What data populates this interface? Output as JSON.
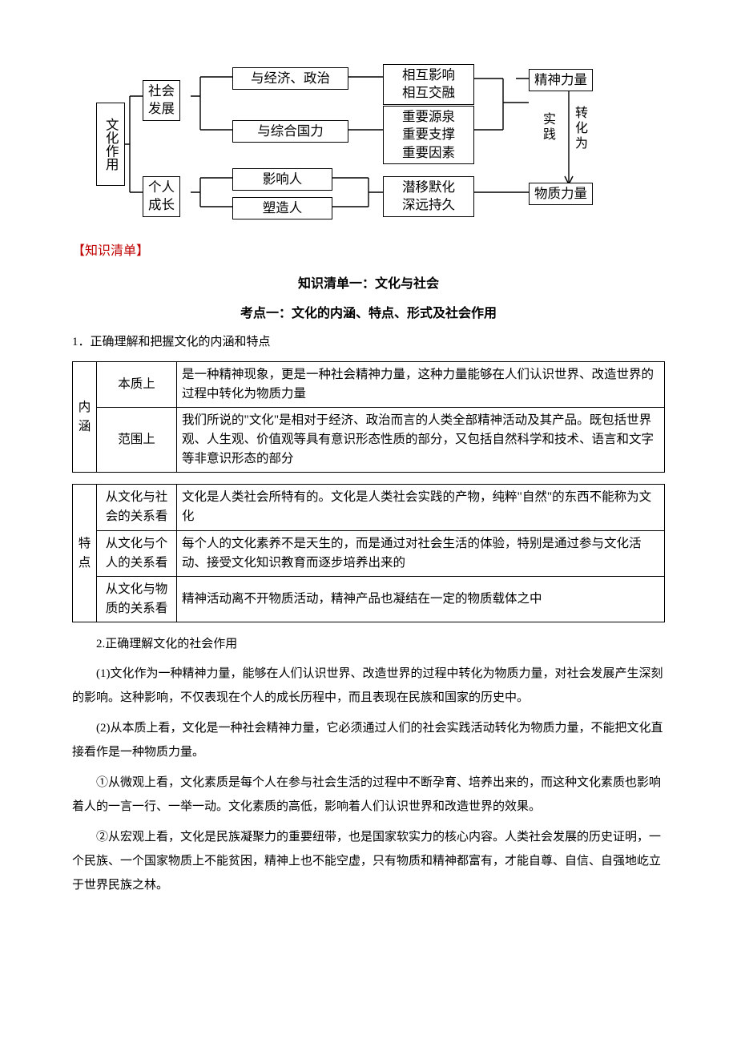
{
  "colors": {
    "header_red": "#c00000",
    "border": "#000000",
    "text": "#000000",
    "bg": "#ffffff"
  },
  "diagram": {
    "root": "文化作用",
    "level1": {
      "a": "社会\n发展",
      "b": "个人\n成长"
    },
    "level2": {
      "a": "与经济、政治",
      "b": "与综合国力",
      "c": "影响人",
      "d": "塑造人"
    },
    "level3": {
      "a": "相互影响\n相互交融",
      "b": "重要源泉\n重要支撑\n重要因素",
      "c": "潜移默化\n深远持久"
    },
    "right": {
      "a": "精神力量",
      "b": "物质力量"
    },
    "conn_label1": "实\n践",
    "conn_label2": "转\n化\n为"
  },
  "knowledge_header": "【知识清单】",
  "list1_title": "知识清单一：文化与社会",
  "kaodian1": "考点一：文化的内涵、特点、形式及社会作用",
  "point1": "1．正确理解和把握文化的内涵和特点",
  "table1": {
    "cat": "内\n涵",
    "rows": [
      {
        "aspect": "本质上",
        "desc": "是一种精神现象，更是一种社会精神力量，这种力量能够在人们认识世界、改造世界的过程中转化为物质力量"
      },
      {
        "aspect": "范围上",
        "desc": "我们所说的\"文化\"是相对于经济、政治而言的人类全部精神活动及其产品。既包括世界观、人生观、价值观等具有意识形态性质的部分，又包括自然科学和技术、语言和文字等非意识形态的部分"
      }
    ]
  },
  "table2": {
    "cat": "特\n点",
    "rows": [
      {
        "aspect": "从文化与社会的关系看",
        "desc": "文化是人类社会所特有的。文化是人类社会实践的产物，纯粹\"自然\"的东西不能称为文化"
      },
      {
        "aspect": "从文化与个人的关系看",
        "desc": "每个人的文化素养不是天生的，而是通过对社会生活的体验，特别是通过参与文化活动、接受文化知识教育而逐步培养出来的"
      },
      {
        "aspect": "从文化与物质的关系看",
        "desc": "精神活动离不开物质活动，精神产品也凝结在一定的物质载体之中"
      }
    ]
  },
  "point2": "2.正确理解文化的社会作用",
  "para1": "(1)文化作为一种精神力量，能够在人们认识世界、改造世界的过程中转化为物质力量，对社会发展产生深刻的影响。这种影响，不仅表现在个人的成长历程中，而且表现在民族和国家的历史中。",
  "para2": "(2)从本质上看，文化是一种社会精神力量，它必须通过人们的社会实践活动转化为物质力量，不能把文化直接看作是一种物质力量。",
  "para3": "①从微观上看，文化素质是每个人在参与社会生活的过程中不断孕育、培养出来的，而这种文化素质也影响着人的一言一行、一举一动。文化素质的高低，影响着人们认识世界和改造世界的效果。",
  "para4": "②从宏观上看，文化是民族凝聚力的重要纽带，也是国家软实力的核心内容。人类社会发展的历史证明，一个民族、一个国家物质上不能贫困，精神上也不能空虚，只有物质和精神都富有，才能自尊、自信、自强地屹立于世界民族之林。"
}
